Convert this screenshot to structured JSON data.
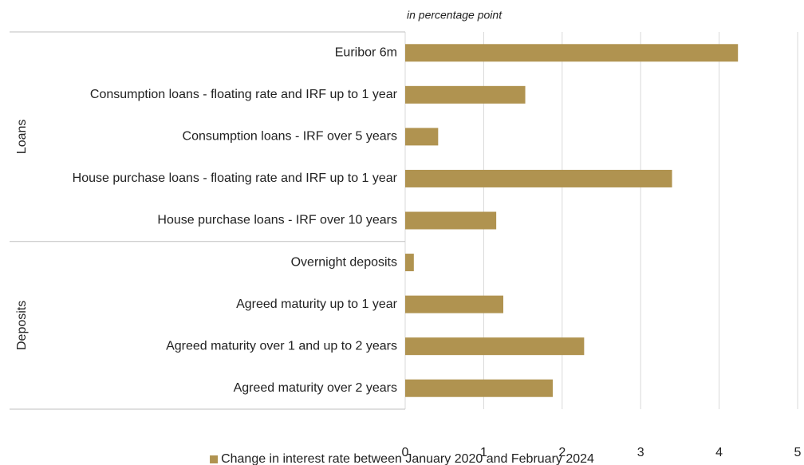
{
  "chart_data": {
    "type": "bar",
    "orientation": "horizontal",
    "subtitle": "in percentage point",
    "groups": [
      {
        "name": "Loans",
        "categories": [
          "Euribor 6m",
          "Consumption loans - floating rate and IRF up to 1 year",
          "Consumption loans - IRF over 5 years",
          "House purchase loans - floating rate and IRF up to 1 year",
          "House purchase loans - IRF over 10 years"
        ]
      },
      {
        "name": "Deposits",
        "categories": [
          "Overnight deposits",
          "Agreed maturity up to 1 year",
          "Agreed maturity over 1 and up to 2 years",
          "Agreed maturity over 2 years"
        ]
      }
    ],
    "series": [
      {
        "name": "Change in interest rate between January 2020 and February 2024",
        "color": "#b09350",
        "values": [
          4.24,
          1.53,
          0.42,
          3.4,
          1.16,
          0.11,
          1.25,
          2.28,
          1.88
        ]
      }
    ],
    "xlim": [
      0,
      5
    ],
    "xticks": [
      0,
      1,
      2,
      3,
      4,
      5
    ],
    "grid": true,
    "legend": "bottom"
  }
}
